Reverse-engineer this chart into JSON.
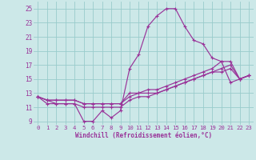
{
  "xlabel": "Windchill (Refroidissement éolien,°C)",
  "background_color": "#cce8e8",
  "grid_color": "#99cccc",
  "line_color": "#993399",
  "xlim": [
    -0.5,
    23.5
  ],
  "ylim": [
    8.5,
    26.0
  ],
  "yticks": [
    9,
    11,
    13,
    15,
    17,
    19,
    21,
    23,
    25
  ],
  "xticks": [
    0,
    1,
    2,
    3,
    4,
    5,
    6,
    7,
    8,
    9,
    10,
    11,
    12,
    13,
    14,
    15,
    16,
    17,
    18,
    19,
    20,
    21,
    22,
    23
  ],
  "series": [
    [
      12.5,
      11.5,
      11.5,
      11.5,
      11.5,
      9.0,
      9.0,
      10.5,
      9.5,
      10.5,
      16.5,
      18.5,
      22.5,
      24.0,
      25.0,
      25.0,
      22.5,
      20.5,
      20.0,
      18.0,
      17.5,
      14.5,
      15.0,
      15.5
    ],
    [
      12.5,
      12.0,
      12.0,
      12.0,
      12.0,
      11.5,
      11.5,
      11.5,
      11.5,
      11.5,
      13.0,
      13.0,
      13.5,
      13.5,
      14.0,
      14.5,
      15.0,
      15.5,
      16.0,
      16.5,
      17.5,
      17.5,
      15.0,
      15.5
    ],
    [
      12.5,
      12.0,
      12.0,
      12.0,
      12.0,
      11.5,
      11.5,
      11.5,
      11.5,
      11.5,
      12.5,
      13.0,
      13.0,
      13.0,
      13.5,
      14.0,
      14.5,
      15.0,
      15.5,
      16.0,
      16.5,
      17.0,
      15.0,
      15.5
    ],
    [
      12.5,
      12.0,
      11.5,
      11.5,
      11.5,
      11.0,
      11.0,
      11.0,
      11.0,
      11.0,
      12.0,
      12.5,
      12.5,
      13.0,
      13.5,
      14.0,
      14.5,
      15.0,
      15.5,
      16.0,
      16.0,
      16.5,
      15.0,
      15.5
    ]
  ]
}
